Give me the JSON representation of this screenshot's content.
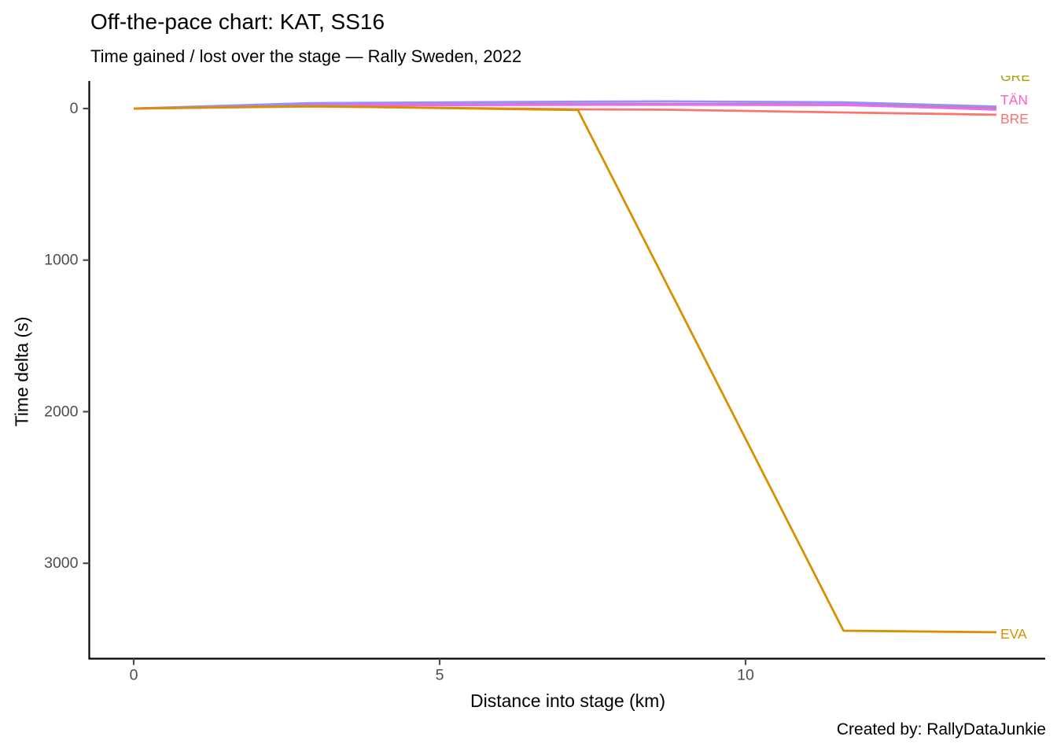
{
  "header": {
    "title": "Off-the-pace chart: KAT, SS16",
    "subtitle": "Time gained / lost over the stage — Rally Sweden, 2022"
  },
  "caption": "Created by: RallyDataJunkie",
  "chart_data": {
    "type": "line",
    "title": "Off-the-pace chart: KAT, SS16",
    "subtitle": "Time gained / lost over the stage — Rally Sweden, 2022",
    "xlabel": "Distance into stage (km)",
    "ylabel": "Time delta (s)",
    "caption": "Created by: RallyDataJunkie",
    "reference_driver": "KAT",
    "stage": "SS16",
    "event": "Rally Sweden, 2022",
    "x_tick_labels": [
      "0",
      "5",
      "10"
    ],
    "x_tick_values": [
      0,
      5,
      10
    ],
    "y_tick_labels": [
      "0",
      "1000",
      "2000",
      "3000"
    ],
    "y_tick_values": [
      0,
      1000,
      2000,
      3000
    ],
    "y_axis_inverted": true,
    "grid": "off",
    "legend_position": "line-end-labels-right",
    "x_range_km": [
      0,
      14.1
    ],
    "y_range_s": [
      -180,
      3630
    ],
    "x": [
      0,
      2.9,
      7.26,
      8.74,
      11.6,
      14.1
    ],
    "series": [
      {
        "name": "GRE",
        "color": "#A3A500",
        "labeled": true,
        "label_clipped_at_top": true,
        "values": [
          0,
          -25,
          -30,
          -30,
          -28,
          -10
        ]
      },
      {
        "name": "TÄN",
        "color": "#FF62BC",
        "labeled": true,
        "values": [
          0,
          -20,
          -25,
          -25,
          -23,
          4
        ]
      },
      {
        "name": "",
        "color": "#E76BF3",
        "labeled": false,
        "values": [
          0,
          -23,
          -28,
          -28,
          -26,
          8
        ]
      },
      {
        "name": "",
        "color": "#9590FF",
        "labeled": false,
        "values": [
          0,
          -36,
          -45,
          -47,
          -41,
          -13
        ]
      },
      {
        "name": "BRE",
        "color": "#F8766D",
        "labeled": true,
        "values": [
          0,
          -14,
          5,
          8,
          26,
          41
        ]
      },
      {
        "name": "EVA",
        "color": "#D89000",
        "labeled": true,
        "values": [
          0,
          -16,
          10,
          1181,
          3445,
          3455
        ]
      }
    ],
    "axis_color": "#000000",
    "tick_text_color": "#4D4D4D"
  }
}
